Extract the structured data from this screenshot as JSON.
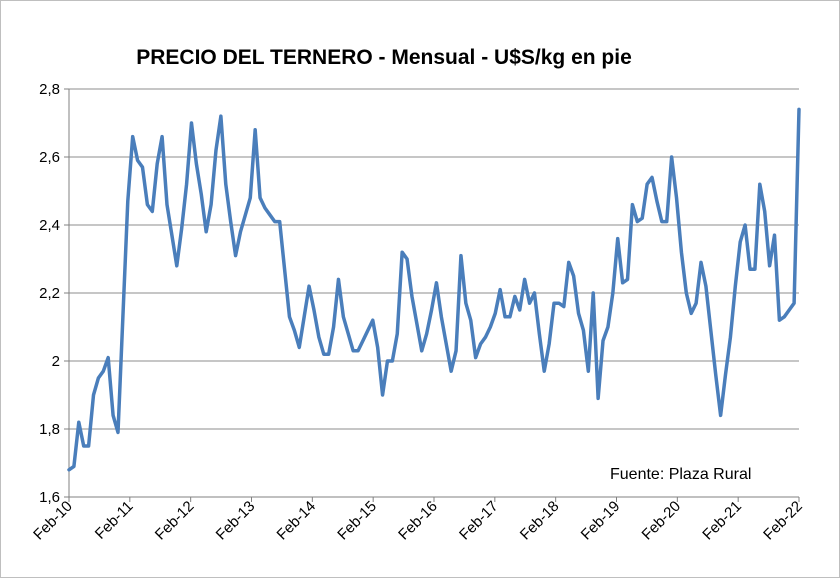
{
  "chart_data": {
    "type": "line",
    "title": "PRECIO DEL TERNERO - Mensual - U$S/kg en pie",
    "source": "Fuente: Plaza Rural",
    "xlabel": "",
    "ylabel": "",
    "ylim": [
      1.6,
      2.8
    ],
    "y_ticks": [
      "1,6",
      "1,8",
      "2",
      "2,2",
      "2,4",
      "2,6",
      "2,8"
    ],
    "x_ticks": [
      "Feb-10",
      "Feb-11",
      "Feb-12",
      "Feb-13",
      "Feb-14",
      "Feb-15",
      "Feb-16",
      "Feb-17",
      "Feb-18",
      "Feb-19",
      "Feb-20",
      "Feb-21",
      "Feb-22"
    ],
    "grid": "horizontal",
    "legend": "none",
    "line_color": "#4a7ebb",
    "series": [
      {
        "values": [
          1.68,
          1.69,
          1.82,
          1.75,
          1.75,
          1.9,
          1.95,
          1.97,
          2.01,
          1.84,
          1.79,
          2.13,
          2.47,
          2.66,
          2.59,
          2.57,
          2.46,
          2.44,
          2.58,
          2.66,
          2.46,
          2.37,
          2.28,
          2.39,
          2.52,
          2.7,
          2.58,
          2.49,
          2.38,
          2.46,
          2.62,
          2.72,
          2.52,
          2.41,
          2.31,
          2.38,
          2.43,
          2.48,
          2.68,
          2.48,
          2.45,
          2.43,
          2.41,
          2.41,
          2.27,
          2.13,
          2.09,
          2.04,
          2.13,
          2.22,
          2.15,
          2.07,
          2.02,
          2.02,
          2.1,
          2.24,
          2.13,
          2.08,
          2.03,
          2.03,
          2.06,
          2.09,
          2.12,
          2.04,
          1.9,
          2.0,
          2.0,
          2.08,
          2.32,
          2.3,
          2.19,
          2.11,
          2.03,
          2.08,
          2.15,
          2.23,
          2.13,
          2.05,
          1.97,
          2.03,
          2.31,
          2.17,
          2.12,
          2.01,
          2.05,
          2.07,
          2.1,
          2.14,
          2.21,
          2.13,
          2.13,
          2.19,
          2.15,
          2.24,
          2.17,
          2.2,
          2.08,
          1.97,
          2.05,
          2.17,
          2.17,
          2.16,
          2.29,
          2.25,
          2.14,
          2.09,
          1.97,
          2.2,
          1.89,
          2.06,
          2.1,
          2.2,
          2.36,
          2.23,
          2.24,
          2.46,
          2.41,
          2.42,
          2.52,
          2.54,
          2.47,
          2.41,
          2.41,
          2.6,
          2.48,
          2.32,
          2.2,
          2.14,
          2.17,
          2.29,
          2.22,
          2.09,
          1.96,
          1.84,
          1.96,
          2.07,
          2.22,
          2.35,
          2.4,
          2.27,
          2.27,
          2.52,
          2.44,
          2.28,
          2.37,
          2.12,
          2.13,
          2.15,
          2.17,
          2.74
        ]
      }
    ]
  }
}
